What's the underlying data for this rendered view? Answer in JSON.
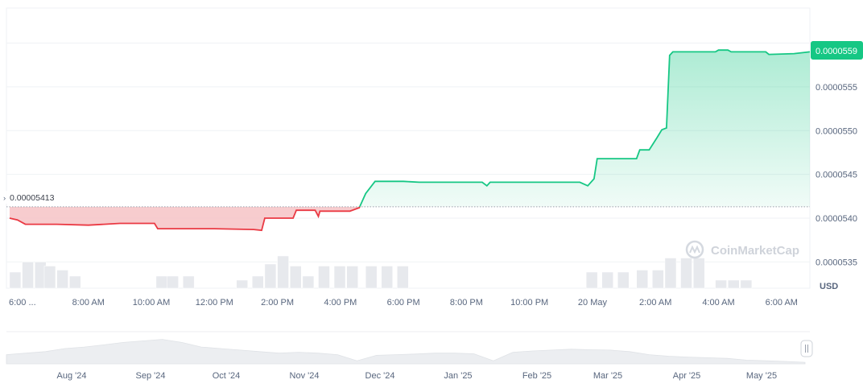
{
  "chart_data": {
    "type": "line",
    "currency_label": "USD",
    "watermark": "CoinMarketCap",
    "reference_price_label": "0.00005413",
    "current_price_label": "0.0000559",
    "reference_price": 5.413e-05,
    "current_price": 5.59e-05,
    "ylim": [
      5.32e-05,
      5.64e-05
    ],
    "y_ticks": [
      {
        "label": "0.0000535",
        "value": 5.35e-05
      },
      {
        "label": "0.0000540",
        "value": 5.4e-05
      },
      {
        "label": "0.0000545",
        "value": 5.45e-05
      },
      {
        "label": "0.0000550",
        "value": 5.5e-05
      },
      {
        "label": "0.0000555",
        "value": 5.55e-05
      }
    ],
    "x_tick_labels": [
      "6:00 ...",
      "8:00 AM",
      "10:00 AM",
      "12:00 PM",
      "2:00 PM",
      "4:00 PM",
      "6:00 PM",
      "8:00 PM",
      "10:00 PM",
      "20 May",
      "2:00 AM",
      "4:00 AM",
      "6:00 AM"
    ],
    "x_tick_times": [
      6,
      8,
      10,
      12,
      14,
      16,
      18,
      20,
      22,
      24,
      26,
      28,
      30
    ],
    "xlim": [
      5.4,
      30.9
    ],
    "grid": true,
    "colors": {
      "up": "#16c784",
      "down": "#ea3943",
      "up_fill": "#16c784",
      "down_fill": "#ea3943",
      "volume": "#e6e8ec",
      "badge": "#16c784",
      "axis_text": "#58667e"
    },
    "series": [
      {
        "values": [
          [
            5.5,
            5.4e-05
          ],
          [
            5.75,
            5.398e-05
          ],
          [
            6.0,
            5.393e-05
          ],
          [
            6.5,
            5.393e-05
          ],
          [
            7.0,
            5.393e-05
          ],
          [
            7.5,
            5.393e-05
          ],
          [
            8.0,
            5.392e-05
          ],
          [
            8.5,
            5.393e-05
          ],
          [
            9.0,
            5.394e-05
          ],
          [
            9.5,
            5.394e-05
          ],
          [
            10.1,
            5.394e-05
          ],
          [
            10.2,
            5.388e-05
          ],
          [
            11.0,
            5.388e-05
          ],
          [
            12.0,
            5.388e-05
          ],
          [
            13.0,
            5.388e-05
          ],
          [
            13.25,
            5.387e-05
          ],
          [
            13.5,
            5.386e-05
          ],
          [
            13.6,
            5.4e-05
          ],
          [
            14.5,
            5.4e-05
          ],
          [
            14.6,
            5.409e-05
          ],
          [
            15.0,
            5.409e-05
          ],
          [
            15.5,
            5.408e-05
          ],
          [
            16.0,
            5.408e-05
          ],
          [
            15.5,
            5.408e-05
          ]
        ]
      }
    ],
    "points": [
      [
        5.5,
        5.4e-05
      ],
      [
        5.75,
        5.398e-05
      ],
      [
        6.0,
        5.393e-05
      ],
      [
        7.0,
        5.393e-05
      ],
      [
        8.0,
        5.392e-05
      ],
      [
        9.0,
        5.394e-05
      ],
      [
        10.1,
        5.394e-05
      ],
      [
        10.2,
        5.388e-05
      ],
      [
        12.0,
        5.388e-05
      ],
      [
        13.25,
        5.387e-05
      ],
      [
        13.5,
        5.386e-05
      ],
      [
        13.6,
        5.4e-05
      ],
      [
        14.5,
        5.4e-05
      ],
      [
        14.6,
        5.409e-05
      ],
      [
        15.2,
        5.409e-05
      ],
      [
        15.3,
        5.402e-05
      ],
      [
        15.35,
        5.408e-05
      ],
      [
        16.3,
        5.408e-05
      ],
      [
        16.6,
        5.412e-05
      ],
      [
        16.8,
        5.428e-05
      ],
      [
        17.1,
        5.442e-05
      ],
      [
        18.0,
        5.442e-05
      ],
      [
        18.5,
        5.441e-05
      ],
      [
        20.0,
        5.441e-05
      ],
      [
        20.5,
        5.441e-05
      ],
      [
        20.65,
        5.437e-05
      ],
      [
        20.75,
        5.441e-05
      ],
      [
        22.0,
        5.441e-05
      ],
      [
        23.6,
        5.441e-05
      ],
      [
        23.85,
        5.437e-05
      ],
      [
        24.05,
        5.445e-05
      ],
      [
        24.15,
        5.468e-05
      ],
      [
        25.4,
        5.468e-05
      ],
      [
        25.5,
        5.478e-05
      ],
      [
        25.8,
        5.478e-05
      ],
      [
        26.05,
        5.492e-05
      ],
      [
        26.2,
        5.501e-05
      ],
      [
        26.35,
        5.503e-05
      ],
      [
        26.45,
        5.586e-05
      ],
      [
        26.55,
        5.59e-05
      ],
      [
        27.9,
        5.59e-05
      ],
      [
        28.0,
        5.592e-05
      ],
      [
        28.3,
        5.592e-05
      ],
      [
        28.4,
        5.59e-05
      ],
      [
        29.5,
        5.59e-05
      ],
      [
        29.6,
        5.587e-05
      ],
      [
        30.4,
        5.588e-05
      ],
      [
        30.9,
        5.59e-05
      ]
    ],
    "volume": [
      [
        5.5,
        0.4
      ],
      [
        5.9,
        0.65
      ],
      [
        6.3,
        0.65
      ],
      [
        6.6,
        0.55
      ],
      [
        7.0,
        0.45
      ],
      [
        7.4,
        0.3
      ],
      [
        10.15,
        0.3
      ],
      [
        10.5,
        0.3
      ],
      [
        11.0,
        0.3
      ],
      [
        12.7,
        0.2
      ],
      [
        13.2,
        0.3
      ],
      [
        13.6,
        0.6
      ],
      [
        14.0,
        0.8
      ],
      [
        14.4,
        0.55
      ],
      [
        14.8,
        0.3
      ],
      [
        15.3,
        0.55
      ],
      [
        15.8,
        0.55
      ],
      [
        16.2,
        0.55
      ],
      [
        16.8,
        0.55
      ],
      [
        17.3,
        0.55
      ],
      [
        17.8,
        0.55
      ],
      [
        23.8,
        0.4
      ],
      [
        24.3,
        0.4
      ],
      [
        24.8,
        0.4
      ],
      [
        25.4,
        0.45
      ],
      [
        25.9,
        0.45
      ],
      [
        26.3,
        0.75
      ],
      [
        26.8,
        0.75
      ],
      [
        27.2,
        0.75
      ],
      [
        27.9,
        0.2
      ],
      [
        28.3,
        0.2
      ],
      [
        28.7,
        0.2
      ]
    ],
    "navigator_labels": [
      "Aug '24",
      "Sep '24",
      "Oct '24",
      "Nov '24",
      "Dec '24",
      "Jan '25",
      "Feb '25",
      "Mar '25",
      "Apr '25",
      "May '25"
    ],
    "navigator_profile": [
      0.3,
      0.35,
      0.4,
      0.5,
      0.55,
      0.62,
      0.7,
      0.75,
      0.8,
      0.7,
      0.55,
      0.5,
      0.45,
      0.4,
      0.35,
      0.38,
      0.35,
      0.3,
      0.1,
      0.28,
      0.3,
      0.32,
      0.35,
      0.35,
      0.33,
      0.1,
      0.38,
      0.42,
      0.45,
      0.48,
      0.46,
      0.45,
      0.4,
      0.3,
      0.25,
      0.22,
      0.2,
      0.18,
      0.12,
      0.1,
      0.08,
      0.05
    ]
  }
}
